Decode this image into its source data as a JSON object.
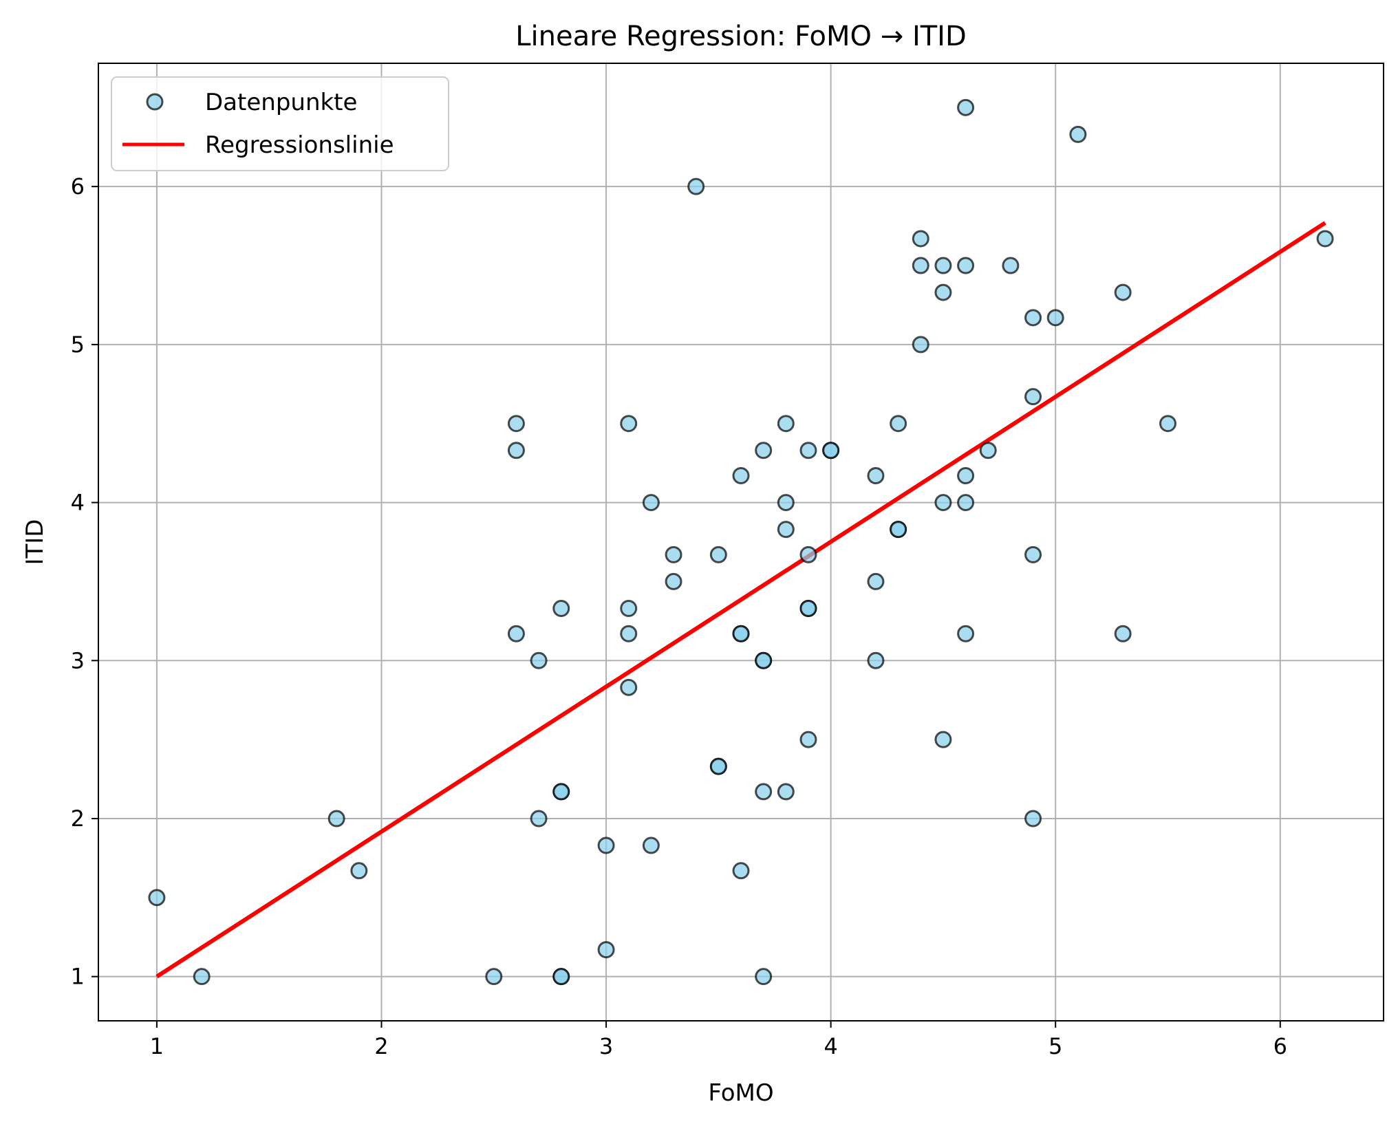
{
  "chart_data": {
    "type": "scatter",
    "title": "Lineare Regression: FoMO → ITID",
    "xlabel": "FoMO",
    "ylabel": "ITID",
    "xlim": [
      0.74,
      6.46
    ],
    "ylim": [
      0.72,
      6.78
    ],
    "xticks": [
      1,
      2,
      3,
      4,
      5,
      6
    ],
    "yticks": [
      1,
      2,
      3,
      4,
      5,
      6
    ],
    "grid": true,
    "legend": {
      "placement": "top-left",
      "entries": [
        "Datenpunkte",
        "Regressionslinie"
      ]
    },
    "series": [
      {
        "name": "Datenpunkte",
        "kind": "scatter",
        "color": "#87ceeb",
        "edgecolor": "#000000",
        "points": [
          [
            1.0,
            1.5
          ],
          [
            1.2,
            1.0
          ],
          [
            1.8,
            2.0
          ],
          [
            1.9,
            1.67
          ],
          [
            2.5,
            1.0
          ],
          [
            2.6,
            4.5
          ],
          [
            2.6,
            4.33
          ],
          [
            2.6,
            3.17
          ],
          [
            2.7,
            3.0
          ],
          [
            2.7,
            2.0
          ],
          [
            2.8,
            3.33
          ],
          [
            2.8,
            2.17
          ],
          [
            2.8,
            2.17
          ],
          [
            2.8,
            1.0
          ],
          [
            2.8,
            1.0
          ],
          [
            3.0,
            1.83
          ],
          [
            3.0,
            1.17
          ],
          [
            3.1,
            4.5
          ],
          [
            3.1,
            3.33
          ],
          [
            3.1,
            3.17
          ],
          [
            3.1,
            2.83
          ],
          [
            3.2,
            4.0
          ],
          [
            3.2,
            1.83
          ],
          [
            3.3,
            3.67
          ],
          [
            3.3,
            3.5
          ],
          [
            3.4,
            6.0
          ],
          [
            3.5,
            3.67
          ],
          [
            3.5,
            2.33
          ],
          [
            3.5,
            2.33
          ],
          [
            3.6,
            4.17
          ],
          [
            3.6,
            3.17
          ],
          [
            3.6,
            3.17
          ],
          [
            3.6,
            1.67
          ],
          [
            3.7,
            4.33
          ],
          [
            3.7,
            3.0
          ],
          [
            3.7,
            3.0
          ],
          [
            3.7,
            2.17
          ],
          [
            3.7,
            1.0
          ],
          [
            3.8,
            4.5
          ],
          [
            3.8,
            4.0
          ],
          [
            3.8,
            3.83
          ],
          [
            3.8,
            2.17
          ],
          [
            3.9,
            4.33
          ],
          [
            3.9,
            3.67
          ],
          [
            3.9,
            3.33
          ],
          [
            3.9,
            3.33
          ],
          [
            3.9,
            2.5
          ],
          [
            4.0,
            4.33
          ],
          [
            4.0,
            4.33
          ],
          [
            4.2,
            4.17
          ],
          [
            4.2,
            3.5
          ],
          [
            4.2,
            3.0
          ],
          [
            4.3,
            4.5
          ],
          [
            4.3,
            3.83
          ],
          [
            4.3,
            3.83
          ],
          [
            4.4,
            5.67
          ],
          [
            4.4,
            5.5
          ],
          [
            4.4,
            5.0
          ],
          [
            4.5,
            5.5
          ],
          [
            4.5,
            5.33
          ],
          [
            4.5,
            4.0
          ],
          [
            4.5,
            2.5
          ],
          [
            4.6,
            6.5
          ],
          [
            4.6,
            5.5
          ],
          [
            4.6,
            4.17
          ],
          [
            4.6,
            4.0
          ],
          [
            4.6,
            3.17
          ],
          [
            4.7,
            4.33
          ],
          [
            4.8,
            5.5
          ],
          [
            4.9,
            5.17
          ],
          [
            4.9,
            4.67
          ],
          [
            4.9,
            3.67
          ],
          [
            4.9,
            2.0
          ],
          [
            5.0,
            5.17
          ],
          [
            5.1,
            6.33
          ],
          [
            5.3,
            5.33
          ],
          [
            5.3,
            3.17
          ],
          [
            5.5,
            4.5
          ],
          [
            6.2,
            5.67
          ]
        ]
      },
      {
        "name": "Regressionslinie",
        "kind": "line",
        "color": "#ff0000",
        "x": [
          1.0,
          6.2
        ],
        "y": [
          1.0,
          5.77
        ]
      }
    ]
  }
}
